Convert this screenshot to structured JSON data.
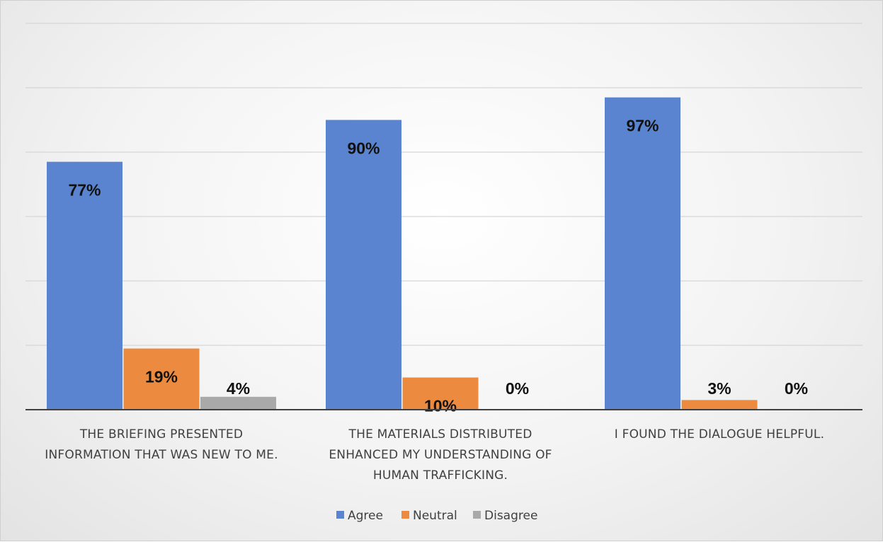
{
  "chart_data": {
    "type": "bar",
    "categories": [
      [
        "THE BRIEFING PRESENTED",
        "INFORMATION THAT WAS NEW TO ME."
      ],
      [
        "THE MATERIALS DISTRIBUTED",
        "ENHANCED MY UNDERSTANDING OF",
        "HUMAN TRAFFICKING."
      ],
      [
        "I FOUND THE DIALOGUE HELPFUL."
      ]
    ],
    "series": [
      {
        "name": "Agree",
        "values": [
          77,
          90,
          97
        ],
        "labels": [
          "77%",
          "90%",
          "97%"
        ],
        "color": "#5a84cf"
      },
      {
        "name": "Neutral",
        "values": [
          19,
          10,
          3
        ],
        "labels": [
          "19%",
          "10%",
          "3%"
        ],
        "color": "#ec8b3f"
      },
      {
        "name": "Disagree",
        "values": [
          4,
          0,
          0
        ],
        "labels": [
          "4%",
          "0%",
          "0%"
        ],
        "color": "#a9a9a9"
      }
    ],
    "ylim": [
      0,
      120
    ],
    "y_gridline_step": 20,
    "grid": true,
    "y_axis_labels": false,
    "legend": "bottom",
    "title": "",
    "xlabel": "",
    "ylabel": ""
  }
}
